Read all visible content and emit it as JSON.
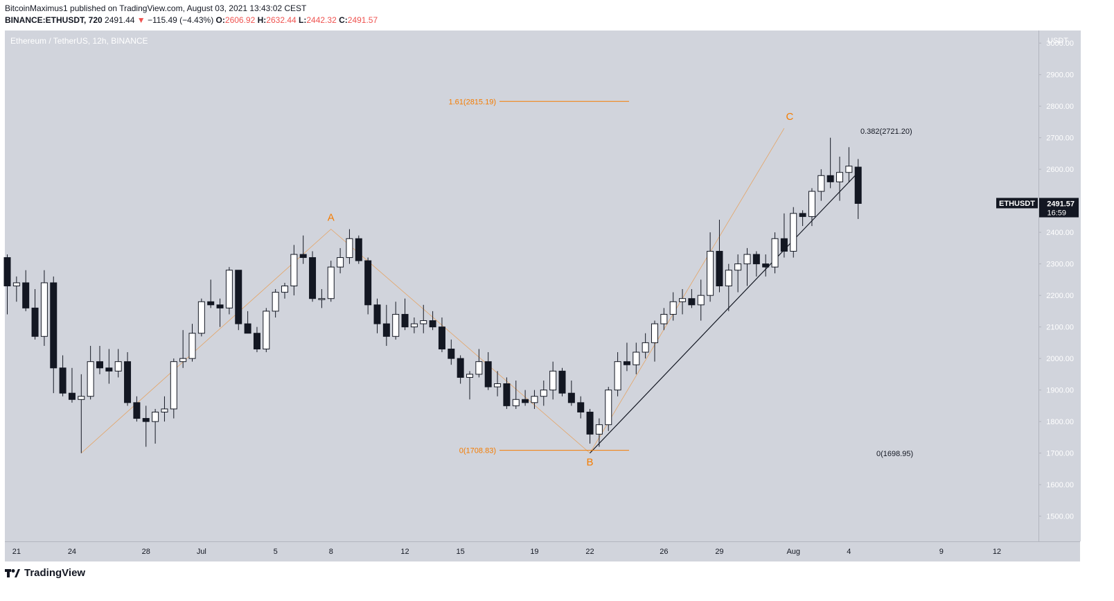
{
  "header": {
    "published": "BitcoinMaximus1 published on TradingView.com, August 03, 2021 13:43:02 CEST",
    "symbol": "BINANCE:ETHUSDT, 720",
    "last": "2491.44",
    "arrow": "▼",
    "change": "−115.49 (−4.43%)",
    "o_label": "O:",
    "o_val": "2606.92",
    "h_label": "H:",
    "h_val": "2632.44",
    "l_label": "L:",
    "l_val": "2442.32",
    "c_label": "C:",
    "c_val": "2491.57"
  },
  "pair_title": "Ethereum / TetherUS, 12h, BINANCE",
  "brand": "TradingView",
  "colors": {
    "accent": "#f57c00",
    "price_tag": "#131722",
    "down": "#ef5350"
  },
  "chart_data": {
    "type": "candlestick",
    "title": "Ethereum / TetherUS, 12h, BINANCE",
    "ylabel": "USDT",
    "ylim": [
      1420,
      3040
    ],
    "yticks": [
      1500,
      1600,
      1700,
      1800,
      1900,
      2000,
      2100,
      2200,
      2300,
      2400,
      2500,
      2600,
      2700,
      2800,
      2900,
      3000
    ],
    "ytick_labels": [
      "1500.00",
      "1600.00",
      "1700.00",
      "1800.00",
      "1900.00",
      "2000.00",
      "2100.00",
      "2200.00",
      "2300.00",
      "2400.00",
      "2500.00",
      "2600.00",
      "2700.00",
      "2800.00",
      "2900.00",
      "3000.00"
    ],
    "xtick_labels": [
      "21",
      "24",
      "28",
      "Jul",
      "5",
      "8",
      "12",
      "15",
      "19",
      "22",
      "26",
      "29",
      "Aug",
      "4",
      "9",
      "12"
    ],
    "xtick_index": [
      1,
      7,
      15,
      21,
      29,
      35,
      43,
      49,
      57,
      63,
      71,
      77,
      85,
      91,
      101,
      107
    ],
    "candles": [
      {
        "o": 2320,
        "h": 2330,
        "l": 2140,
        "c": 2230
      },
      {
        "o": 2230,
        "h": 2260,
        "l": 2180,
        "c": 2240
      },
      {
        "o": 2240,
        "h": 2280,
        "l": 2150,
        "c": 2160
      },
      {
        "o": 2160,
        "h": 2220,
        "l": 2060,
        "c": 2070
      },
      {
        "o": 2070,
        "h": 2280,
        "l": 2040,
        "c": 2240
      },
      {
        "o": 2240,
        "h": 2260,
        "l": 1890,
        "c": 1970
      },
      {
        "o": 1970,
        "h": 2010,
        "l": 1880,
        "c": 1890
      },
      {
        "o": 1890,
        "h": 1970,
        "l": 1860,
        "c": 1870
      },
      {
        "o": 1870,
        "h": 1950,
        "l": 1700,
        "c": 1880
      },
      {
        "o": 1880,
        "h": 2040,
        "l": 1870,
        "c": 1990
      },
      {
        "o": 1990,
        "h": 2040,
        "l": 1950,
        "c": 1970
      },
      {
        "o": 1970,
        "h": 2030,
        "l": 1920,
        "c": 1960
      },
      {
        "o": 1960,
        "h": 2030,
        "l": 1940,
        "c": 1990
      },
      {
        "o": 1990,
        "h": 2020,
        "l": 1850,
        "c": 1860
      },
      {
        "o": 1860,
        "h": 1880,
        "l": 1800,
        "c": 1810
      },
      {
        "o": 1810,
        "h": 1850,
        "l": 1720,
        "c": 1800
      },
      {
        "o": 1800,
        "h": 1840,
        "l": 1730,
        "c": 1830
      },
      {
        "o": 1830,
        "h": 1880,
        "l": 1800,
        "c": 1840
      },
      {
        "o": 1840,
        "h": 2000,
        "l": 1810,
        "c": 1990
      },
      {
        "o": 1990,
        "h": 2090,
        "l": 1970,
        "c": 2000
      },
      {
        "o": 2000,
        "h": 2110,
        "l": 1990,
        "c": 2080
      },
      {
        "o": 2080,
        "h": 2190,
        "l": 2070,
        "c": 2180
      },
      {
        "o": 2180,
        "h": 2250,
        "l": 2160,
        "c": 2170
      },
      {
        "o": 2170,
        "h": 2190,
        "l": 2100,
        "c": 2160
      },
      {
        "o": 2160,
        "h": 2290,
        "l": 2140,
        "c": 2280
      },
      {
        "o": 2280,
        "h": 2280,
        "l": 2090,
        "c": 2110
      },
      {
        "o": 2110,
        "h": 2150,
        "l": 2080,
        "c": 2080
      },
      {
        "o": 2080,
        "h": 2100,
        "l": 2020,
        "c": 2030
      },
      {
        "o": 2030,
        "h": 2160,
        "l": 2020,
        "c": 2150
      },
      {
        "o": 2150,
        "h": 2220,
        "l": 2130,
        "c": 2210
      },
      {
        "o": 2210,
        "h": 2240,
        "l": 2190,
        "c": 2230
      },
      {
        "o": 2230,
        "h": 2360,
        "l": 2200,
        "c": 2330
      },
      {
        "o": 2330,
        "h": 2390,
        "l": 2300,
        "c": 2320
      },
      {
        "o": 2320,
        "h": 2340,
        "l": 2180,
        "c": 2190
      },
      {
        "o": 2190,
        "h": 2220,
        "l": 2160,
        "c": 2190
      },
      {
        "o": 2190,
        "h": 2310,
        "l": 2180,
        "c": 2290
      },
      {
        "o": 2290,
        "h": 2350,
        "l": 2270,
        "c": 2320
      },
      {
        "o": 2320,
        "h": 2410,
        "l": 2300,
        "c": 2380
      },
      {
        "o": 2380,
        "h": 2390,
        "l": 2300,
        "c": 2310
      },
      {
        "o": 2310,
        "h": 2320,
        "l": 2140,
        "c": 2170
      },
      {
        "o": 2170,
        "h": 2190,
        "l": 2080,
        "c": 2110
      },
      {
        "o": 2110,
        "h": 2170,
        "l": 2040,
        "c": 2070
      },
      {
        "o": 2070,
        "h": 2180,
        "l": 2060,
        "c": 2140
      },
      {
        "o": 2140,
        "h": 2190,
        "l": 2090,
        "c": 2100
      },
      {
        "o": 2100,
        "h": 2130,
        "l": 2080,
        "c": 2110
      },
      {
        "o": 2110,
        "h": 2170,
        "l": 2080,
        "c": 2120
      },
      {
        "o": 2120,
        "h": 2150,
        "l": 2090,
        "c": 2100
      },
      {
        "o": 2100,
        "h": 2130,
        "l": 2020,
        "c": 2030
      },
      {
        "o": 2030,
        "h": 2060,
        "l": 1980,
        "c": 2000
      },
      {
        "o": 2000,
        "h": 2010,
        "l": 1920,
        "c": 1940
      },
      {
        "o": 1940,
        "h": 1960,
        "l": 1870,
        "c": 1950
      },
      {
        "o": 1950,
        "h": 2030,
        "l": 1940,
        "c": 1990
      },
      {
        "o": 1990,
        "h": 2020,
        "l": 1900,
        "c": 1910
      },
      {
        "o": 1910,
        "h": 1960,
        "l": 1880,
        "c": 1920
      },
      {
        "o": 1920,
        "h": 1940,
        "l": 1840,
        "c": 1850
      },
      {
        "o": 1850,
        "h": 1930,
        "l": 1840,
        "c": 1870
      },
      {
        "o": 1870,
        "h": 1900,
        "l": 1850,
        "c": 1860
      },
      {
        "o": 1860,
        "h": 1900,
        "l": 1840,
        "c": 1880
      },
      {
        "o": 1880,
        "h": 1930,
        "l": 1850,
        "c": 1900
      },
      {
        "o": 1900,
        "h": 1990,
        "l": 1870,
        "c": 1960
      },
      {
        "o": 1960,
        "h": 1970,
        "l": 1880,
        "c": 1890
      },
      {
        "o": 1890,
        "h": 1930,
        "l": 1850,
        "c": 1860
      },
      {
        "o": 1860,
        "h": 1880,
        "l": 1810,
        "c": 1830
      },
      {
        "o": 1830,
        "h": 1840,
        "l": 1730,
        "c": 1760
      },
      {
        "o": 1760,
        "h": 1810,
        "l": 1720,
        "c": 1790
      },
      {
        "o": 1790,
        "h": 1910,
        "l": 1770,
        "c": 1900
      },
      {
        "o": 1900,
        "h": 2020,
        "l": 1880,
        "c": 1990
      },
      {
        "o": 1990,
        "h": 2050,
        "l": 1960,
        "c": 1980
      },
      {
        "o": 1980,
        "h": 2050,
        "l": 1950,
        "c": 2020
      },
      {
        "o": 2020,
        "h": 2080,
        "l": 2000,
        "c": 2050
      },
      {
        "o": 2050,
        "h": 2120,
        "l": 1990,
        "c": 2110
      },
      {
        "o": 2110,
        "h": 2160,
        "l": 2090,
        "c": 2140
      },
      {
        "o": 2140,
        "h": 2210,
        "l": 2120,
        "c": 2180
      },
      {
        "o": 2180,
        "h": 2220,
        "l": 2140,
        "c": 2190
      },
      {
        "o": 2190,
        "h": 2220,
        "l": 2160,
        "c": 2170
      },
      {
        "o": 2170,
        "h": 2250,
        "l": 2120,
        "c": 2200
      },
      {
        "o": 2200,
        "h": 2400,
        "l": 2180,
        "c": 2340
      },
      {
        "o": 2340,
        "h": 2440,
        "l": 2210,
        "c": 2230
      },
      {
        "o": 2230,
        "h": 2300,
        "l": 2150,
        "c": 2280
      },
      {
        "o": 2280,
        "h": 2330,
        "l": 2210,
        "c": 2300
      },
      {
        "o": 2300,
        "h": 2350,
        "l": 2230,
        "c": 2330
      },
      {
        "o": 2330,
        "h": 2340,
        "l": 2260,
        "c": 2300
      },
      {
        "o": 2300,
        "h": 2330,
        "l": 2260,
        "c": 2290
      },
      {
        "o": 2290,
        "h": 2400,
        "l": 2270,
        "c": 2380
      },
      {
        "o": 2380,
        "h": 2460,
        "l": 2320,
        "c": 2340
      },
      {
        "o": 2340,
        "h": 2480,
        "l": 2320,
        "c": 2460
      },
      {
        "o": 2460,
        "h": 2470,
        "l": 2420,
        "c": 2450
      },
      {
        "o": 2450,
        "h": 2540,
        "l": 2420,
        "c": 2530
      },
      {
        "o": 2530,
        "h": 2600,
        "l": 2500,
        "c": 2580
      },
      {
        "o": 2580,
        "h": 2700,
        "l": 2540,
        "c": 2560
      },
      {
        "o": 2560,
        "h": 2640,
        "l": 2500,
        "c": 2590
      },
      {
        "o": 2590,
        "h": 2670,
        "l": 2560,
        "c": 2610
      },
      {
        "o": 2606.92,
        "h": 2632.44,
        "l": 2442.32,
        "c": 2491.57
      }
    ],
    "annotations": [
      {
        "label": "A",
        "index": 35,
        "price": 2410
      },
      {
        "label": "B",
        "index": 63,
        "price": 1700
      },
      {
        "label": "C",
        "index": 84,
        "price": 2730
      }
    ],
    "fib_left": [
      {
        "label": "1.61(2815.19)",
        "price": 2815.19
      },
      {
        "label": "0(1708.83)",
        "price": 1708.83
      }
    ],
    "fib_right": [
      {
        "label": "0.382(2721.20)",
        "price": 2721.2
      },
      {
        "label": "0(1698.95)",
        "price": 1698.95
      }
    ],
    "price_tag": {
      "symbol": "ETHUSDT",
      "price": "2491.57",
      "countdown": "16:59",
      "value": 2491.57
    },
    "trendline": {
      "from": {
        "index": 63,
        "price": 1700
      },
      "to": {
        "index": 92,
        "price": 2590
      }
    }
  }
}
